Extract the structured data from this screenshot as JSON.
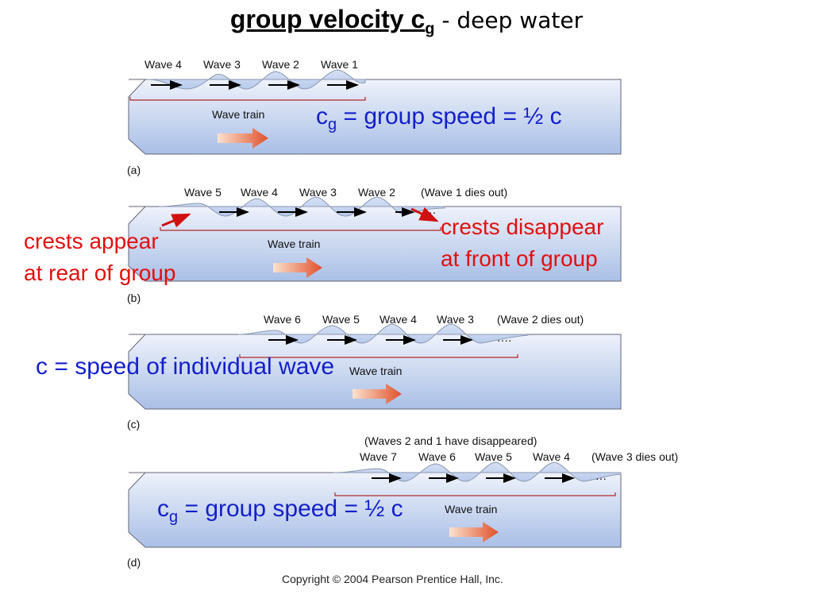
{
  "title": {
    "main": "group velocity c",
    "main_sub": "g",
    "rest": " - deep water"
  },
  "panels": [
    {
      "letter": "(a)",
      "labels": [
        "Wave 4",
        "Wave 3",
        "Wave 2",
        "Wave 1"
      ],
      "train_label": "Wave train"
    },
    {
      "letter": "(b)",
      "labels": [
        "Wave 5",
        "Wave 4",
        "Wave 3",
        "Wave 2",
        "(Wave 1 dies out)"
      ],
      "train_label": "Wave train"
    },
    {
      "letter": "(c)",
      "labels": [
        "Wave 6",
        "Wave 5",
        "Wave 4",
        "Wave 3",
        "(Wave 2 dies out)"
      ],
      "train_label": "Wave train"
    },
    {
      "letter": "(d)",
      "top_note": "(Waves 2 and 1 have disappeared)",
      "labels": [
        "Wave 7",
        "Wave 6",
        "Wave 5",
        "Wave 4",
        "(Wave 3 dies out)"
      ],
      "train_label": "Wave train"
    }
  ],
  "annotations": {
    "group_speed_a": {
      "c": "c",
      "sub": "g",
      "text": " = group speed = ½ c"
    },
    "group_speed_d": {
      "c": "c",
      "sub": "g",
      "text": " = group speed = ½ c"
    },
    "crests_appear": [
      "crests appear",
      "at rear of group"
    ],
    "crests_disappear": [
      "crests disappear",
      "at front of group"
    ],
    "individual": "c = speed of individual wave"
  },
  "copyright": "Copyright © 2004 Pearson Prentice Hall, Inc.",
  "colors": {
    "tank_top": "#eef2fb",
    "tank_bottom": "#a9bfe6",
    "water_surface": "#c4d3ee",
    "bracket": "#b22a2a",
    "train_arrow": "#e0502a",
    "note_blue": "#1420c8",
    "note_red": "#e01010"
  }
}
